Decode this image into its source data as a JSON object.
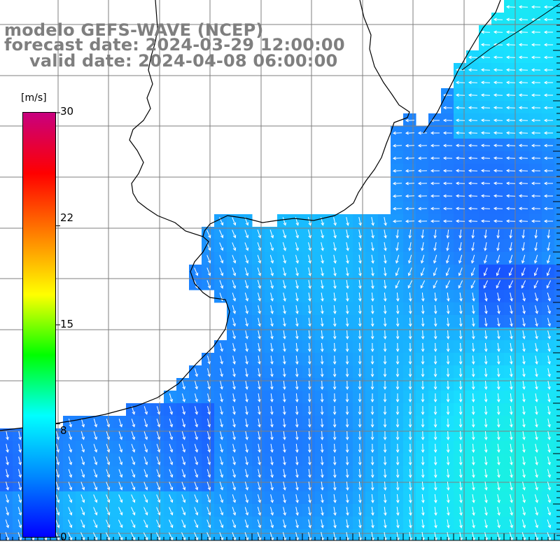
{
  "header": {
    "line1": "modelo GEFS-WAVE (NCEP)",
    "line2": "forecast date: 2024-03-29 12:00:00",
    "line3": "valid date: 2024-04-08 06:00:00"
  },
  "colorbar": {
    "unit": "[m/s]",
    "ticks": [
      "30",
      "22",
      "15",
      "8",
      "0"
    ],
    "tick_values": [
      30,
      22,
      15,
      8,
      0
    ],
    "range": [
      0,
      30
    ],
    "colors": [
      "#0000ff",
      "#0088ff",
      "#00ffff",
      "#00ff00",
      "#ffff00",
      "#ff7f00",
      "#ff0000",
      "#c8007f"
    ]
  },
  "map_data": {
    "variable": "wind speed and direction",
    "ocean_color_low": "#2f7fff",
    "ocean_color_mid": "#19c8ff",
    "ocean_color_high": "#19f0d8",
    "land_color": "#ffffff",
    "coastline_color": "#000000",
    "grid_color": "#7f7f7f",
    "arrow_color": "#ffffff"
  }
}
